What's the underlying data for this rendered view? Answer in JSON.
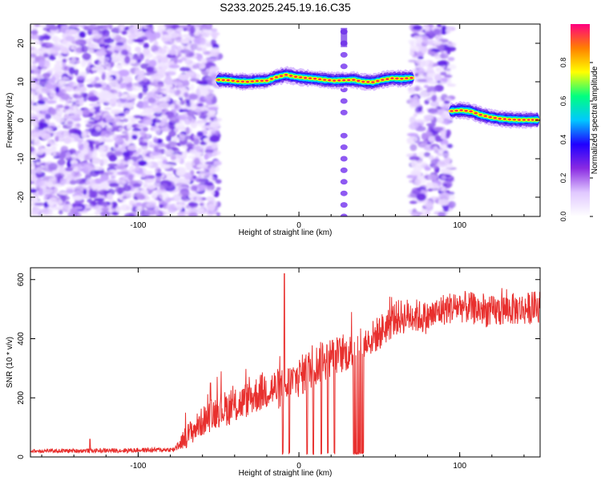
{
  "figure_title": "S233.2025.245.19.16.C35",
  "chart_data": [
    {
      "type": "heatmap",
      "name": "spectrogram",
      "xlabel": "Height of straight line (km)",
      "ylabel": "Frequency (Hz)",
      "xlim": [
        -167,
        150
      ],
      "ylim": [
        -25,
        25
      ],
      "xticks": [
        -100,
        0,
        100
      ],
      "yticks": [
        -20,
        -10,
        0,
        10,
        20
      ],
      "noise_regions_km": [
        [
          -167,
          -50
        ],
        [
          70,
          95
        ]
      ],
      "comb_line_x_km": 28,
      "comb_line_freqs_hz": [
        23,
        20,
        17,
        14,
        11,
        8,
        5,
        2,
        -4,
        -7,
        -10,
        -13,
        -16,
        -19,
        -22,
        -25
      ],
      "signal_track": {
        "x_km": [
          -50,
          -44,
          -38,
          -32,
          -26,
          -20,
          -14,
          -8,
          -2,
          4,
          10,
          16,
          22,
          28,
          34,
          40,
          46,
          52,
          58,
          64,
          70
        ],
        "freq_hz": [
          10.5,
          10.4,
          10.1,
          10.0,
          10.2,
          10.3,
          11.2,
          11.8,
          11.3,
          11.0,
          10.8,
          10.5,
          10.3,
          10.4,
          10.5,
          10.0,
          9.9,
          10.5,
          10.9,
          10.8,
          11.0
        ]
      },
      "signal_track_2": {
        "x_km": [
          95,
          101,
          107,
          113,
          119,
          125,
          131,
          137,
          143,
          148
        ],
        "freq_hz": [
          2.4,
          2.6,
          2.3,
          1.4,
          0.8,
          0.4,
          0.2,
          0.1,
          0.1,
          0.1
        ]
      },
      "colorbar": {
        "label": "Normalized spectral amplitude",
        "range": [
          0,
          1
        ],
        "ticks": [
          "0.0",
          "0.2",
          "0.4",
          "0.6",
          "0.8"
        ],
        "colors": [
          "#ffffff",
          "#e0c8ff",
          "#8a2be2",
          "#2000ff",
          "#00c8ff",
          "#00ff80",
          "#ffff00",
          "#ff8000",
          "#ff0080"
        ]
      }
    },
    {
      "type": "line",
      "name": "snr",
      "xlabel": "Height of straight line (km)",
      "ylabel": "SNR (10 * v/v)",
      "xlim": [
        -167,
        150
      ],
      "ylim": [
        0,
        640
      ],
      "xticks": [
        -100,
        0,
        100
      ],
      "yticks": [
        0,
        200,
        400,
        600
      ],
      "line_color": "#e8302e",
      "series_envelope": {
        "x_km": [
          -167,
          -110,
          -78,
          -70,
          -60,
          -50,
          -40,
          -30,
          -20,
          -10,
          0,
          10,
          20,
          30,
          40,
          50,
          60,
          70,
          80,
          90,
          100,
          110,
          120,
          130,
          140,
          150
        ],
        "mean": [
          20,
          22,
          25,
          70,
          120,
          160,
          170,
          200,
          230,
          230,
          270,
          310,
          340,
          350,
          380,
          420,
          470,
          480,
          470,
          500,
          510,
          500,
          490,
          500,
          500,
          510
        ],
        "spread": [
          6,
          8,
          8,
          40,
          50,
          60,
          60,
          60,
          70,
          70,
          70,
          70,
          70,
          60,
          60,
          60,
          60,
          60,
          55,
          55,
          55,
          55,
          55,
          55,
          55,
          55
        ]
      },
      "spikes": [
        {
          "x_km": -9,
          "value": 620
        },
        {
          "x_km": -55,
          "value": 250
        },
        {
          "x_km": -130,
          "value": 60
        }
      ],
      "dropouts_x_km": [
        -10,
        -6,
        5,
        9,
        14,
        18,
        22,
        34,
        35,
        36,
        37,
        38,
        39,
        40
      ]
    }
  ]
}
